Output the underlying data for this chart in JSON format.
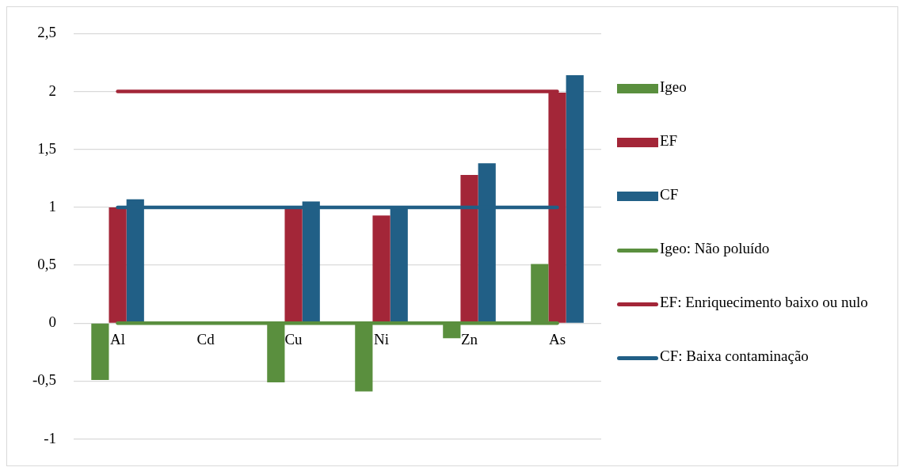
{
  "chart_data": {
    "type": "bar",
    "categories": [
      "Al",
      "Cd",
      "Cu",
      "Ni",
      "Zn",
      "As"
    ],
    "series": [
      {
        "name": "Igeo",
        "color": "#5a8f3e",
        "values": [
          -0.49,
          null,
          -0.51,
          -0.59,
          -0.13,
          0.51
        ]
      },
      {
        "name": "EF",
        "color": "#a32638",
        "values": [
          1.0,
          null,
          0.99,
          0.93,
          1.28,
          1.99
        ]
      },
      {
        "name": "CF",
        "color": "#215f86",
        "values": [
          1.07,
          null,
          1.05,
          1.0,
          1.38,
          2.14
        ]
      },
      {
        "name": "Igeo: Não poluído",
        "type": "line",
        "color": "#5a8f3e",
        "values": [
          0,
          0,
          0,
          0,
          0,
          0
        ]
      },
      {
        "name": "EF: Enriquecimento baixo ou nulo",
        "type": "line",
        "color": "#a32638",
        "values": [
          2,
          2,
          2,
          2,
          2,
          2
        ]
      },
      {
        "name": "CF: Baixa contaminação",
        "type": "line",
        "color": "#215f86",
        "values": [
          1,
          1,
          1,
          1,
          1,
          1
        ]
      }
    ],
    "ylim": [
      -1,
      2.5
    ],
    "yticks": [
      {
        "value": -1,
        "label": "-1"
      },
      {
        "value": -0.5,
        "label": "-0,5"
      },
      {
        "value": 0,
        "label": "0"
      },
      {
        "value": 0.5,
        "label": "0,5"
      },
      {
        "value": 1,
        "label": "1"
      },
      {
        "value": 1.5,
        "label": "1,5"
      },
      {
        "value": 2,
        "label": "2"
      },
      {
        "value": 2.5,
        "label": "2,5"
      }
    ],
    "grid": "y",
    "legend": "right",
    "marker": "none",
    "line_style": "solid"
  }
}
